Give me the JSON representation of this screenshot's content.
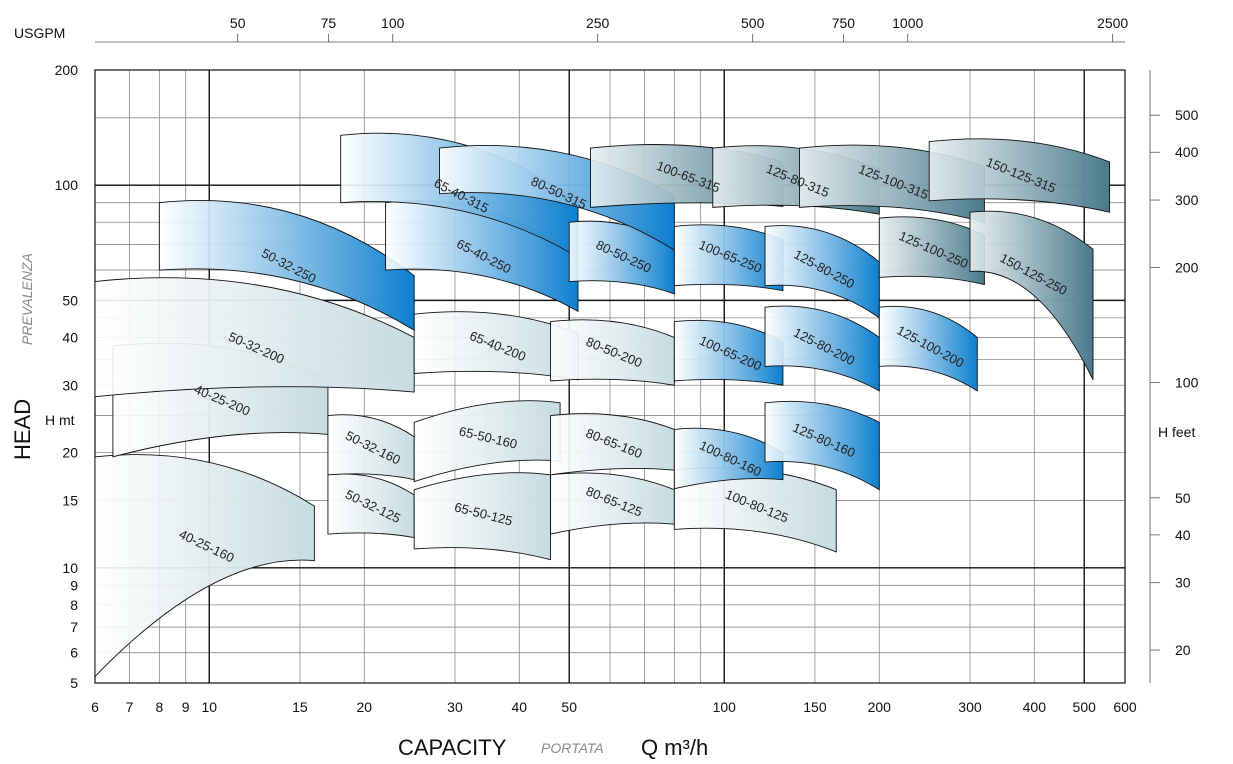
{
  "chart_data": {
    "type": "area",
    "title": "",
    "xlabel": "CAPACITY",
    "xlabel_secondary": "PORTATA",
    "xlabel_unit": "Q m³/h",
    "ylabel": "HEAD",
    "ylabel_secondary": "PREVALENZA",
    "ylabel_unit": "H mt",
    "y2label_unit": "H feet",
    "top_axis_label": "USGPM",
    "x_scale": "log",
    "y_scale": "log",
    "xlim": [
      6,
      600
    ],
    "ylim": [
      5,
      200
    ],
    "grid": true,
    "x_ticks": [
      "6",
      "7",
      "8",
      "9",
      "10",
      "15",
      "20",
      "30",
      "40",
      "50",
      "100",
      "150",
      "200",
      "300",
      "400",
      "500",
      "600"
    ],
    "x_tick_values": [
      6,
      7,
      8,
      9,
      10,
      15,
      20,
      30,
      40,
      50,
      100,
      150,
      200,
      300,
      400,
      500,
      600
    ],
    "y_ticks": [
      "5",
      "6",
      "7",
      "8",
      "9",
      "10",
      "15",
      "20",
      "30",
      "40",
      "50",
      "100",
      "200"
    ],
    "y_tick_values": [
      5,
      6,
      7,
      8,
      9,
      10,
      15,
      20,
      30,
      40,
      50,
      100,
      200
    ],
    "top_ticks": [
      "50",
      "75",
      "100",
      "250",
      "500",
      "750",
      "1000",
      "2500"
    ],
    "top_tick_values": [
      50,
      75,
      100,
      250,
      500,
      750,
      1000,
      2500
    ],
    "right_ticks": [
      "20",
      "30",
      "40",
      "50",
      "100",
      "200",
      "300",
      "400",
      "500"
    ],
    "right_tick_values": [
      20,
      30,
      40,
      50,
      100,
      200,
      300,
      400,
      500
    ],
    "series": [
      {
        "name": "40-25-160",
        "q_range": [
          6,
          16
        ],
        "h_shutoff": 19.5,
        "h_end": 14.5,
        "h_min_start": 5.2,
        "shade": "light"
      },
      {
        "name": "40-25-200",
        "q_range": [
          6.5,
          17
        ],
        "h_shutoff": 38,
        "h_end": 31,
        "h_min_start": 19.5,
        "shade": "light"
      },
      {
        "name": "50-32-125",
        "q_range": [
          17,
          25
        ],
        "h_shutoff": 17.5,
        "h_end": 15.5,
        "h_min_end": 12,
        "shade": "light"
      },
      {
        "name": "50-32-160",
        "q_range": [
          17,
          25
        ],
        "h_shutoff": 25,
        "h_end": 22,
        "h_min_end": 17,
        "shade": "light"
      },
      {
        "name": "50-32-200",
        "q_range": [
          6,
          25
        ],
        "h_shutoff": 56,
        "h_end": 40,
        "h_min_start": 28,
        "shade": "light"
      },
      {
        "name": "50-32-250",
        "q_range": [
          8,
          25
        ],
        "h_shutoff": 90,
        "h_end": 58,
        "h_min_start": 60,
        "shade": "blue"
      },
      {
        "name": "65-40-200",
        "q_range": [
          25,
          52
        ],
        "h_shutoff": 46,
        "h_end": 41,
        "h_min_end": 31,
        "shade": "light"
      },
      {
        "name": "65-40-250",
        "q_range": [
          22,
          52
        ],
        "h_shutoff": 90,
        "h_end": 65,
        "h_min_start": 60,
        "shade": "blue"
      },
      {
        "name": "65-40-315",
        "q_range": [
          18,
          52
        ],
        "h_shutoff": 135,
        "h_end": 90,
        "h_min_start": 90,
        "shade": "blue"
      },
      {
        "name": "65-50-125",
        "q_range": [
          25,
          46
        ],
        "h_shutoff": 16,
        "h_end": 17.5,
        "h_min_end": 10.5,
        "shade": "light"
      },
      {
        "name": "65-50-160",
        "q_range": [
          25,
          48
        ],
        "h_shutoff": 24,
        "h_end": 27,
        "h_min_end": 19,
        "shade": "light"
      },
      {
        "name": "80-50-200",
        "q_range": [
          46,
          80
        ],
        "h_shutoff": 44,
        "h_end": 40,
        "h_min_end": 30,
        "shade": "light"
      },
      {
        "name": "80-50-250",
        "q_range": [
          50,
          80
        ],
        "h_shutoff": 80,
        "h_end": 70,
        "h_min_end": 52,
        "shade": "blue"
      },
      {
        "name": "80-50-315",
        "q_range": [
          28,
          80
        ],
        "h_shutoff": 125,
        "h_end": 94,
        "h_min_start": 95,
        "shade": "blue"
      },
      {
        "name": "80-65-125",
        "q_range": [
          46,
          80
        ],
        "h_shutoff": 17.5,
        "h_end": 16,
        "h_min_end": 13,
        "shade": "light"
      },
      {
        "name": "80-65-160",
        "q_range": [
          46,
          80
        ],
        "h_shutoff": 25,
        "h_end": 23,
        "h_min_end": 18,
        "shade": "light"
      },
      {
        "name": "100-65-200",
        "q_range": [
          80,
          130
        ],
        "h_shutoff": 44,
        "h_end": 39,
        "h_min_end": 30,
        "shade": "blue"
      },
      {
        "name": "100-65-250",
        "q_range": [
          80,
          130
        ],
        "h_shutoff": 78,
        "h_end": 72,
        "h_min_end": 53,
        "shade": "blue"
      },
      {
        "name": "100-65-315",
        "q_range": [
          55,
          130
        ],
        "h_shutoff": 125,
        "h_end": 115,
        "h_min_end": 88,
        "shade": "dark"
      },
      {
        "name": "100-80-125",
        "q_range": [
          80,
          165
        ],
        "h_shutoff": 18,
        "h_end": 16,
        "h_min_end": 11,
        "shade": "light"
      },
      {
        "name": "100-80-160",
        "q_range": [
          80,
          130
        ],
        "h_shutoff": 23,
        "h_end": 20,
        "h_min_end": 17,
        "shade": "blue"
      },
      {
        "name": "125-80-200",
        "q_range": [
          120,
          200
        ],
        "h_shutoff": 48,
        "h_end": 40,
        "h_min_end": 29,
        "shade": "blue"
      },
      {
        "name": "125-80-250",
        "q_range": [
          120,
          200
        ],
        "h_shutoff": 78,
        "h_end": 63,
        "h_min_end": 45,
        "shade": "blue"
      },
      {
        "name": "125-80-315",
        "q_range": [
          95,
          200
        ],
        "h_shutoff": 125,
        "h_end": 110,
        "h_min_end": 84,
        "shade": "dark"
      },
      {
        "name": "125-80-160",
        "q_range": [
          120,
          200
        ],
        "h_shutoff": 27,
        "h_end": 24,
        "h_min_end": 16,
        "shade": "blue"
      },
      {
        "name": "125-100-200",
        "q_range": [
          200,
          310
        ],
        "h_shutoff": 48,
        "h_end": 40,
        "h_min_end": 29,
        "shade": "blue"
      },
      {
        "name": "125-100-250",
        "q_range": [
          200,
          320
        ],
        "h_shutoff": 82,
        "h_end": 74,
        "h_min_end": 55,
        "shade": "dark"
      },
      {
        "name": "125-100-315",
        "q_range": [
          140,
          320
        ],
        "h_shutoff": 125,
        "h_end": 112,
        "h_min_end": 80,
        "shade": "dark"
      },
      {
        "name": "150-125-250",
        "q_range": [
          300,
          520
        ],
        "h_shutoff": 85,
        "h_end": 68,
        "h_min_end": 31,
        "shade": "dark"
      },
      {
        "name": "150-125-315",
        "q_range": [
          250,
          560
        ],
        "h_shutoff": 130,
        "h_end": 115,
        "h_min_end": 85,
        "shade": "dark"
      }
    ],
    "colors": {
      "light_start": "#ffffff",
      "light_end": "#c6dbe0",
      "blue_start": "#ffffff",
      "blue_end": "#0d7fcf",
      "dark_start": "#e6eef0",
      "dark_end": "#4a7a8c",
      "grid_major": "#111111",
      "grid_minor": "#8a8a8a"
    }
  }
}
